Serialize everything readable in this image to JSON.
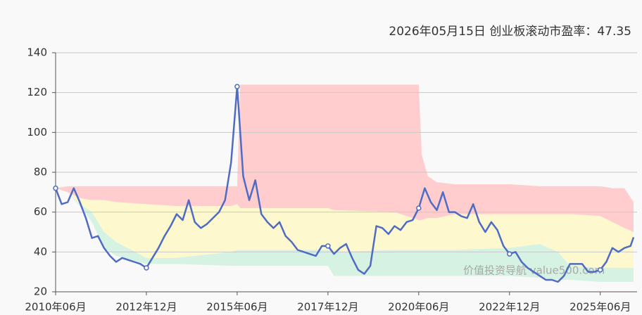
{
  "chart_data": {
    "type": "line",
    "title": "2026年05月15日    创业板滚动市盈率：47.35",
    "watermark": "价值投资导航 value500.com",
    "x": [
      "2010-06",
      "2010-08",
      "2010-10",
      "2010-12",
      "2011-02",
      "2011-04",
      "2011-06",
      "2011-08",
      "2011-10",
      "2011-12",
      "2012-02",
      "2012-04",
      "2012-06",
      "2012-08",
      "2012-10",
      "2012-12",
      "2013-02",
      "2013-04",
      "2013-06",
      "2013-08",
      "2013-10",
      "2013-12",
      "2014-02",
      "2014-04",
      "2014-06",
      "2014-08",
      "2014-10",
      "2014-12",
      "2015-02",
      "2015-04",
      "2015-06",
      "2015-08",
      "2015-10",
      "2015-12",
      "2016-02",
      "2016-04",
      "2016-06",
      "2016-08",
      "2016-10",
      "2016-12",
      "2017-02",
      "2017-04",
      "2017-06",
      "2017-08",
      "2017-10",
      "2017-12",
      "2018-02",
      "2018-04",
      "2018-06",
      "2018-08",
      "2018-10",
      "2018-12",
      "2019-02",
      "2019-04",
      "2019-06",
      "2019-08",
      "2019-10",
      "2019-12",
      "2020-02",
      "2020-04",
      "2020-06",
      "2020-08",
      "2020-10",
      "2020-12",
      "2021-02",
      "2021-04",
      "2021-06",
      "2021-08",
      "2021-10",
      "2021-12",
      "2022-02",
      "2022-04",
      "2022-06",
      "2022-08",
      "2022-10",
      "2022-12",
      "2023-02",
      "2023-04",
      "2023-06",
      "2023-08",
      "2023-10",
      "2023-12",
      "2024-02",
      "2024-04",
      "2024-06",
      "2024-08",
      "2024-10",
      "2024-12",
      "2025-02",
      "2025-04",
      "2025-06",
      "2025-08",
      "2025-10",
      "2025-12",
      "2026-02",
      "2026-04",
      "2026-05"
    ],
    "series": [
      {
        "color": "#4f6bc4",
        "values": [
          72,
          64,
          65,
          72,
          65,
          57,
          47,
          48,
          42,
          38,
          35,
          37,
          36,
          35,
          34,
          32,
          37,
          42,
          48,
          53,
          59,
          56,
          66,
          55,
          52,
          54,
          57,
          60,
          66,
          85,
          123,
          78,
          66,
          76,
          59,
          55,
          52,
          55,
          48,
          45,
          41,
          40,
          39,
          38,
          43,
          43,
          39,
          42,
          44,
          37,
          31,
          29,
          33,
          53,
          52,
          49,
          53,
          51,
          55,
          56,
          62,
          72,
          65,
          61,
          70,
          60,
          60,
          58,
          57,
          64,
          55,
          50,
          55,
          51,
          43,
          39,
          40,
          35,
          32,
          30,
          28,
          26,
          26,
          25,
          28,
          34,
          34,
          34,
          30,
          30,
          31,
          35,
          42,
          40,
          42,
          43,
          47.35
        ]
      }
    ],
    "bands": {
      "colors": [
        "#ffcdcd",
        "#fdf8cd",
        "#d6f2e2"
      ],
      "x": [
        "2010-06",
        "2010-10",
        "2011-02",
        "2011-06",
        "2011-10",
        "2012-02",
        "2012-12",
        "2013-10",
        "2015-04",
        "2015-06",
        "2015-07",
        "2017-10",
        "2017-12",
        "2018-02",
        "2019-10",
        "2020-06",
        "2020-07",
        "2020-09",
        "2020-12",
        "2021-06",
        "2022-12",
        "2023-10",
        "2024-04",
        "2024-08",
        "2025-06",
        "2025-10",
        "2026-02",
        "2026-05"
      ],
      "edges": [
        [
          72,
          73,
          73,
          73,
          73,
          73,
          73,
          73,
          73,
          73,
          124,
          124,
          124,
          124,
          124,
          124,
          89,
          78,
          75,
          74,
          74,
          73,
          73,
          73,
          73,
          72,
          72,
          65
        ],
        [
          72,
          70,
          67,
          66,
          66,
          65,
          64,
          63,
          63,
          64,
          62,
          62,
          62,
          61,
          60,
          56,
          56,
          57,
          57,
          59,
          59,
          59,
          59,
          59,
          58,
          55,
          52,
          50
        ],
        [
          72,
          70,
          64,
          60,
          50,
          45,
          37,
          37,
          40,
          41,
          41,
          41,
          41,
          40,
          41,
          41,
          41,
          41,
          41,
          41,
          42,
          44,
          40,
          33,
          32,
          32,
          32,
          32
        ],
        [
          72,
          70,
          63,
          55,
          42,
          38,
          34,
          34,
          33,
          33,
          33,
          33,
          33,
          28,
          28,
          28,
          28,
          28,
          28,
          28,
          28,
          27,
          26,
          26,
          25,
          25,
          25,
          25
        ]
      ]
    },
    "xlim": [
      "2010-06",
      "2026-05"
    ],
    "xticks": [
      {
        "value": "2010-06",
        "label": "2010年06月"
      },
      {
        "value": "2012-12",
        "label": "2012年12月"
      },
      {
        "value": "2015-06",
        "label": "2015年06月"
      },
      {
        "value": "2017-12",
        "label": "2017年12月"
      },
      {
        "value": "2020-06",
        "label": "2020年06月"
      },
      {
        "value": "2022-12",
        "label": "2022年12月"
      },
      {
        "value": "2025-06",
        "label": "2025年06月"
      }
    ],
    "ylim": [
      20,
      140
    ],
    "yticks": [
      20,
      40,
      60,
      80,
      100,
      120,
      140
    ],
    "grid": true
  }
}
